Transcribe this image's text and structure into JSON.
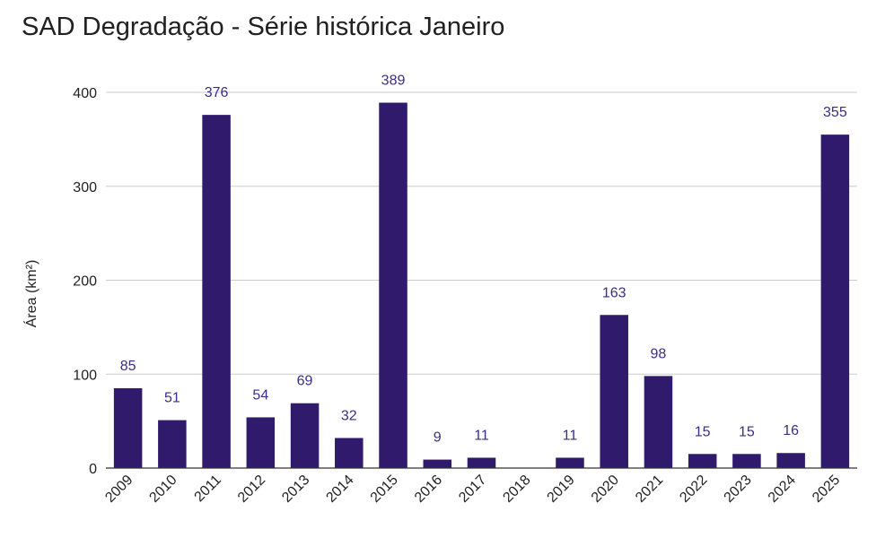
{
  "chart_data": {
    "type": "bar",
    "title": "SAD Degradação - Série histórica Janeiro",
    "xlabel": "",
    "ylabel": "Área (km²)",
    "categories": [
      "2009",
      "2010",
      "2011",
      "2012",
      "2013",
      "2014",
      "2015",
      "2016",
      "2017",
      "2018",
      "2019",
      "2020",
      "2021",
      "2022",
      "2023",
      "2024",
      "2025"
    ],
    "values": [
      85,
      51,
      376,
      54,
      69,
      32,
      389,
      9,
      11,
      null,
      11,
      163,
      98,
      15,
      15,
      16,
      355
    ],
    "data_labels": [
      "85",
      "51",
      "376",
      "54",
      "69",
      "32",
      "389",
      "9",
      "11",
      "",
      "11",
      "163",
      "98",
      "15",
      "15",
      "16",
      "355"
    ],
    "ylim": [
      0,
      400
    ],
    "yticks": [
      0,
      100,
      200,
      300,
      400
    ],
    "grid": true,
    "legend": "none",
    "bar_color": "#2f1a6b",
    "label_color": "#3d2c85"
  }
}
